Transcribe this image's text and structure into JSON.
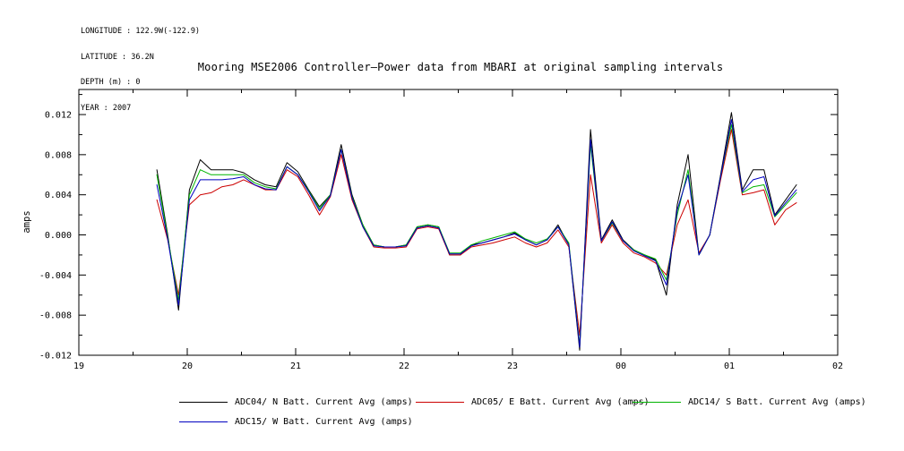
{
  "header": {
    "longitude": "LONGITUDE : 122.9W(-122.9)",
    "latitude": "LATITUDE : 36.2N",
    "depth": "DEPTH (m) : 0",
    "year": "YEAR : 2007"
  },
  "chart_data": {
    "type": "line",
    "title": "Mooring MSE2006 Controller—Power data from MBARI at original sampling intervals",
    "xlabel": "",
    "ylabel": "amps",
    "grid": false,
    "legend_position": "bottom",
    "x_range": [
      19,
      26
    ],
    "y_range": [
      -0.012,
      0.0145
    ],
    "x_ticks": [
      {
        "v": 19,
        "label": "19"
      },
      {
        "v": 20,
        "label": "20"
      },
      {
        "v": 21,
        "label": "21"
      },
      {
        "v": 22,
        "label": "22"
      },
      {
        "v": 23,
        "label": "23"
      },
      {
        "v": 24,
        "label": "00"
      },
      {
        "v": 25,
        "label": "01"
      },
      {
        "v": 26,
        "label": "02"
      }
    ],
    "y_ticks": [
      {
        "v": -0.012,
        "label": "-0.012"
      },
      {
        "v": -0.008,
        "label": "-0.008"
      },
      {
        "v": -0.004,
        "label": "-0.004"
      },
      {
        "v": 0.0,
        "label": "0.000"
      },
      {
        "v": 0.004,
        "label": "0.004"
      },
      {
        "v": 0.008,
        "label": "0.008"
      },
      {
        "v": 0.012,
        "label": "0.012"
      }
    ],
    "x": [
      19.72,
      19.82,
      19.92,
      20.02,
      20.12,
      20.22,
      20.32,
      20.42,
      20.52,
      20.62,
      20.72,
      20.82,
      20.92,
      21.02,
      21.12,
      21.22,
      21.32,
      21.42,
      21.52,
      21.62,
      21.72,
      21.82,
      21.92,
      22.02,
      22.12,
      22.22,
      22.32,
      22.42,
      22.52,
      22.62,
      22.72,
      22.82,
      22.92,
      23.02,
      23.12,
      23.22,
      23.32,
      23.42,
      23.52,
      23.62,
      23.72,
      23.82,
      23.92,
      24.02,
      24.12,
      24.22,
      24.32,
      24.42,
      24.52,
      24.62,
      24.72,
      24.82,
      24.92,
      25.02,
      25.12,
      25.22,
      25.32,
      25.42,
      25.52,
      25.62
    ],
    "series": [
      {
        "name": "ADC04",
        "label": "ADC04/ N Batt. Current Avg (amps)",
        "color": "#000000",
        "values": [
          0.0065,
          0.0,
          -0.0075,
          0.0045,
          0.0075,
          0.0065,
          0.0065,
          0.0065,
          0.0062,
          0.0055,
          0.005,
          0.0048,
          0.0072,
          0.0063,
          0.0045,
          0.0028,
          0.004,
          0.009,
          0.004,
          0.001,
          -0.001,
          -0.0012,
          -0.0012,
          -0.001,
          0.0008,
          0.001,
          0.0008,
          -0.002,
          -0.002,
          -0.001,
          -0.0008,
          -0.0005,
          -0.0002,
          0.0002,
          -0.0005,
          -0.001,
          -0.0005,
          0.001,
          -0.001,
          -0.0115,
          0.0105,
          -0.0005,
          0.0015,
          -0.0005,
          -0.0015,
          -0.002,
          -0.0025,
          -0.006,
          0.003,
          0.008,
          -0.002,
          0.0,
          0.006,
          0.0122,
          0.0045,
          0.0065,
          0.0065,
          0.002,
          0.0035,
          0.005
        ]
      },
      {
        "name": "ADC05",
        "label": "ADC05/ E Batt. Current Avg (amps)",
        "color": "#cc0000",
        "values": [
          0.0035,
          -0.0005,
          -0.006,
          0.003,
          0.004,
          0.0042,
          0.0048,
          0.005,
          0.0055,
          0.005,
          0.0045,
          0.0045,
          0.0065,
          0.0058,
          0.004,
          0.002,
          0.0038,
          0.008,
          0.0035,
          0.0008,
          -0.0012,
          -0.0013,
          -0.0013,
          -0.0012,
          0.0006,
          0.0008,
          0.0006,
          -0.002,
          -0.002,
          -0.0012,
          -0.001,
          -0.0008,
          -0.0005,
          -0.0002,
          -0.0008,
          -0.0012,
          -0.0008,
          0.0005,
          -0.0012,
          -0.01,
          0.006,
          -0.0008,
          0.001,
          -0.0008,
          -0.0018,
          -0.0022,
          -0.0028,
          -0.004,
          0.001,
          0.0035,
          -0.0018,
          0.0,
          0.0055,
          0.0105,
          0.004,
          0.0042,
          0.0045,
          0.001,
          0.0025,
          0.0032
        ]
      },
      {
        "name": "ADC14",
        "label": "ADC14/ S Batt. Current Avg (amps)",
        "color": "#00b400",
        "values": [
          0.006,
          -0.0002,
          -0.0065,
          0.004,
          0.0065,
          0.006,
          0.006,
          0.006,
          0.006,
          0.0052,
          0.0048,
          0.0046,
          0.0068,
          0.006,
          0.0044,
          0.0026,
          0.004,
          0.0085,
          0.0038,
          0.001,
          -0.001,
          -0.0012,
          -0.0012,
          -0.001,
          0.0008,
          0.001,
          0.0008,
          -0.0018,
          -0.0018,
          -0.001,
          -0.0006,
          -0.0003,
          0.0,
          0.0003,
          -0.0004,
          -0.0008,
          -0.0004,
          0.0008,
          -0.0008,
          -0.011,
          0.009,
          -0.0006,
          0.0012,
          -0.0006,
          -0.0015,
          -0.002,
          -0.0024,
          -0.0045,
          0.002,
          0.0065,
          -0.002,
          0.0,
          0.0058,
          0.011,
          0.0042,
          0.0048,
          0.005,
          0.0018,
          0.003,
          0.0042
        ]
      },
      {
        "name": "ADC15",
        "label": "ADC15/ W Batt. Current Avg (amps)",
        "color": "#0000c0",
        "values": [
          0.005,
          -0.0004,
          -0.007,
          0.0035,
          0.0055,
          0.0055,
          0.0055,
          0.0056,
          0.0058,
          0.005,
          0.0046,
          0.0045,
          0.0068,
          0.006,
          0.0043,
          0.0024,
          0.0039,
          0.0085,
          0.0037,
          0.0008,
          -0.0011,
          -0.0012,
          -0.0012,
          -0.0011,
          0.0007,
          0.0009,
          0.0007,
          -0.0019,
          -0.0019,
          -0.0011,
          -0.0008,
          -0.0005,
          -0.0002,
          0.0001,
          -0.0005,
          -0.001,
          -0.0005,
          0.0008,
          -0.001,
          -0.0112,
          0.0095,
          -0.0006,
          0.0013,
          -0.0006,
          -0.0016,
          -0.0021,
          -0.0026,
          -0.005,
          0.0025,
          0.006,
          -0.002,
          0.0,
          0.0058,
          0.0115,
          0.0043,
          0.0055,
          0.0058,
          0.0019,
          0.0032,
          0.0045
        ]
      }
    ]
  }
}
